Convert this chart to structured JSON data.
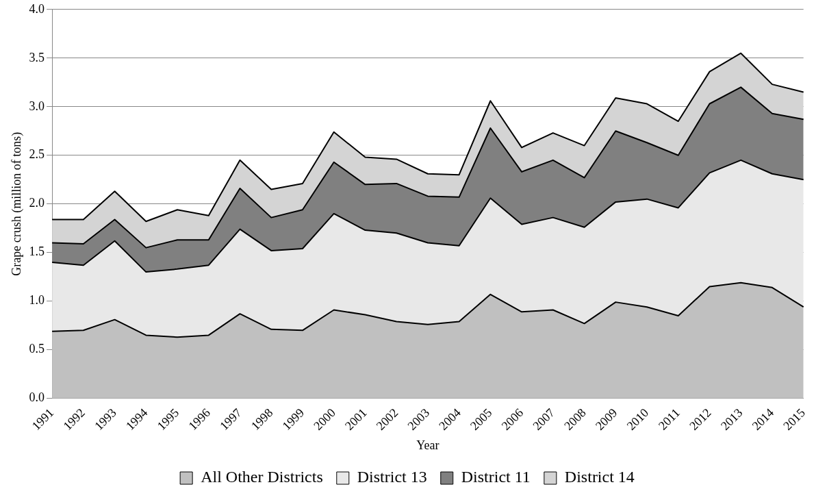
{
  "chart_data": {
    "type": "area",
    "xlabel": "Year",
    "ylabel": "Grape crush (million of tons)",
    "categories": [
      "1991",
      "1992",
      "1993",
      "1994",
      "1995",
      "1996",
      "1997",
      "1998",
      "1999",
      "2000",
      "2001",
      "2002",
      "2003",
      "2004",
      "2005",
      "2006",
      "2007",
      "2008",
      "2009",
      "2010",
      "2011",
      "2012",
      "2013",
      "2014",
      "2015"
    ],
    "stacked": true,
    "ylim": [
      0,
      4
    ],
    "yticks": [
      {
        "value": 0,
        "label": "0.0"
      },
      {
        "value": 0.5,
        "label": "0.5"
      },
      {
        "value": 1,
        "label": "1.0"
      },
      {
        "value": 1.5,
        "label": "1.5"
      },
      {
        "value": 2,
        "label": "2.0"
      },
      {
        "value": 2.5,
        "label": "2.5"
      },
      {
        "value": 3,
        "label": "3.0"
      },
      {
        "value": 3.5,
        "label": "3.5"
      },
      {
        "value": 4,
        "label": "4.0"
      }
    ],
    "grid": "y",
    "legend": "bottom",
    "marker": "none",
    "series": [
      {
        "name": "All Other Districts",
        "color": "#c0c0c0",
        "values": [
          0.69,
          0.7,
          0.81,
          0.65,
          0.63,
          0.65,
          0.87,
          0.71,
          0.7,
          0.91,
          0.86,
          0.79,
          0.76,
          0.79,
          1.07,
          0.89,
          0.91,
          0.77,
          0.99,
          0.94,
          0.85,
          1.15,
          1.19,
          1.14,
          0.94
        ]
      },
      {
        "name": "District 13",
        "color": "#e8e8e8",
        "values": [
          0.71,
          0.67,
          0.81,
          0.65,
          0.7,
          0.72,
          0.87,
          0.81,
          0.84,
          0.99,
          0.87,
          0.91,
          0.84,
          0.78,
          0.99,
          0.9,
          0.95,
          0.99,
          1.03,
          1.11,
          1.11,
          1.17,
          1.26,
          1.17,
          1.31
        ]
      },
      {
        "name": "District 11",
        "color": "#808080",
        "values": [
          0.2,
          0.22,
          0.22,
          0.25,
          0.3,
          0.26,
          0.42,
          0.34,
          0.4,
          0.53,
          0.47,
          0.51,
          0.48,
          0.5,
          0.72,
          0.54,
          0.59,
          0.51,
          0.73,
          0.58,
          0.54,
          0.71,
          0.75,
          0.62,
          0.62
        ]
      },
      {
        "name": "District 14",
        "color": "#d4d4d4",
        "values": [
          0.24,
          0.25,
          0.29,
          0.27,
          0.31,
          0.25,
          0.29,
          0.29,
          0.27,
          0.31,
          0.28,
          0.25,
          0.23,
          0.23,
          0.28,
          0.25,
          0.28,
          0.33,
          0.34,
          0.4,
          0.35,
          0.33,
          0.35,
          0.3,
          0.28
        ]
      }
    ]
  }
}
